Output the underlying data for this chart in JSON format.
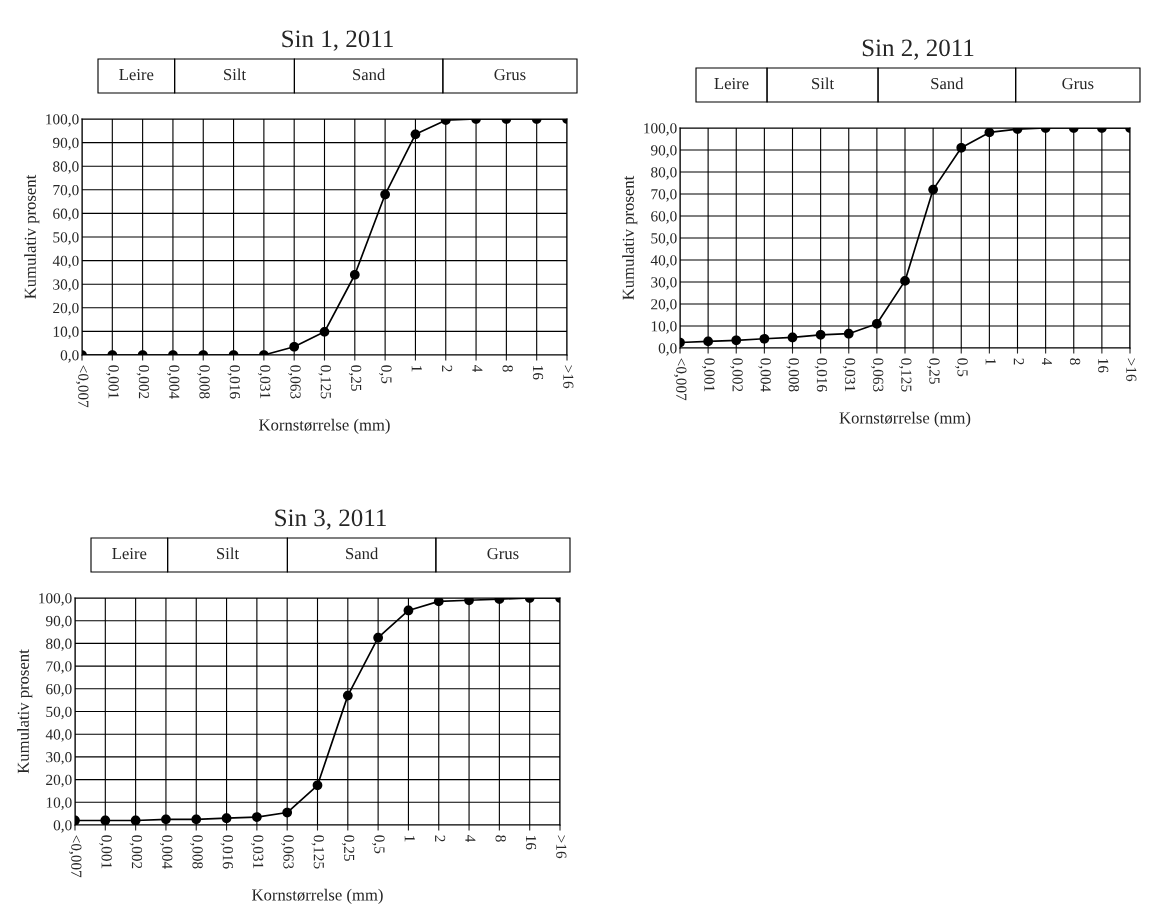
{
  "chart_data": [
    {
      "type": "line",
      "title": "Sin 1, 2011",
      "xlabel": "Kornstørrelse (mm)",
      "ylabel": "Kumulativ prosent",
      "annotations": [
        "Leire",
        "Silt",
        "Sand",
        "Grus"
      ],
      "categories": [
        "<0,007",
        "0,001",
        "0,002",
        "0,004",
        "0,008",
        "0,016",
        "0,031",
        "0,063",
        "0,125",
        "0,25",
        "0,5",
        "1",
        "2",
        "4",
        "8",
        "16",
        ">16"
      ],
      "series": [
        {
          "color": "#000000",
          "values": [
            0,
            0,
            0,
            0,
            0,
            0,
            0,
            3.5,
            9.8,
            34,
            68,
            93.5,
            99.5,
            100,
            100,
            100,
            100
          ]
        }
      ],
      "ylim": [
        0,
        100
      ],
      "yticks": [
        {
          "value": 0,
          "label": "0,0"
        },
        {
          "value": 10,
          "label": "10,0"
        },
        {
          "value": 20,
          "label": "20,0"
        },
        {
          "value": 30,
          "label": "30,0"
        },
        {
          "value": 40,
          "label": "40,0"
        },
        {
          "value": 50,
          "label": "50,0"
        },
        {
          "value": 60,
          "label": "60,0"
        },
        {
          "value": 70,
          "label": "70,0"
        },
        {
          "value": 80,
          "label": "80,0"
        },
        {
          "value": 90,
          "label": "90,0"
        },
        {
          "value": 100,
          "label": "100,0"
        }
      ],
      "grid": true,
      "marker": "circle",
      "line_style": "solid"
    },
    {
      "type": "line",
      "title": "Sin 2, 2011",
      "xlabel": "Kornstørrelse (mm)",
      "ylabel": "Kumulativ prosent",
      "annotations": [
        "Leire",
        "Silt",
        "Sand",
        "Grus"
      ],
      "categories": [
        "<0,007",
        "0,001",
        "0,002",
        "0,004",
        "0,008",
        "0,016",
        "0,031",
        "0,063",
        "0,125",
        "0,25",
        "0,5",
        "1",
        "2",
        "4",
        "8",
        "16",
        ">16"
      ],
      "series": [
        {
          "color": "#000000",
          "values": [
            2.5,
            3,
            3.5,
            4.2,
            4.8,
            6,
            6.5,
            11,
            30.5,
            72,
            91,
            98,
            99.5,
            100,
            100,
            100,
            100
          ]
        }
      ],
      "ylim": [
        0,
        100
      ],
      "yticks": [
        {
          "value": 0,
          "label": "0,0"
        },
        {
          "value": 10,
          "label": "10,0"
        },
        {
          "value": 20,
          "label": "20,0"
        },
        {
          "value": 30,
          "label": "30,0"
        },
        {
          "value": 40,
          "label": "40,0"
        },
        {
          "value": 50,
          "label": "50,0"
        },
        {
          "value": 60,
          "label": "60,0"
        },
        {
          "value": 70,
          "label": "70,0"
        },
        {
          "value": 80,
          "label": "80,0"
        },
        {
          "value": 90,
          "label": "90,0"
        },
        {
          "value": 100,
          "label": "100,0"
        }
      ],
      "grid": true,
      "marker": "circle",
      "line_style": "solid"
    },
    {
      "type": "line",
      "title": "Sin 3, 2011",
      "xlabel": "Kornstørrelse (mm)",
      "ylabel": "Kumulativ prosent",
      "annotations": [
        "Leire",
        "Silt",
        "Sand",
        "Grus"
      ],
      "categories": [
        "<0,007",
        "0,001",
        "0,002",
        "0,004",
        "0,008",
        "0,016",
        "0,031",
        "0,063",
        "0,125",
        "0,25",
        "0,5",
        "1",
        "2",
        "4",
        "8",
        "16",
        ">16"
      ],
      "series": [
        {
          "color": "#000000",
          "values": [
            2,
            2,
            2,
            2.5,
            2.5,
            3,
            3.5,
            5.5,
            17.5,
            57,
            82.5,
            94.5,
            98.5,
            99,
            99.5,
            100,
            100
          ]
        }
      ],
      "ylim": [
        0,
        100
      ],
      "yticks": [
        {
          "value": 0,
          "label": "0,0"
        },
        {
          "value": 10,
          "label": "10,0"
        },
        {
          "value": 20,
          "label": "20,0"
        },
        {
          "value": 30,
          "label": "30,0"
        },
        {
          "value": 40,
          "label": "40,0"
        },
        {
          "value": 50,
          "label": "50,0"
        },
        {
          "value": 60,
          "label": "60,0"
        },
        {
          "value": 70,
          "label": "70,0"
        },
        {
          "value": 80,
          "label": "80,0"
        },
        {
          "value": 90,
          "label": "90,0"
        },
        {
          "value": 100,
          "label": "100,0"
        }
      ],
      "grid": true,
      "marker": "circle",
      "line_style": "solid"
    }
  ]
}
